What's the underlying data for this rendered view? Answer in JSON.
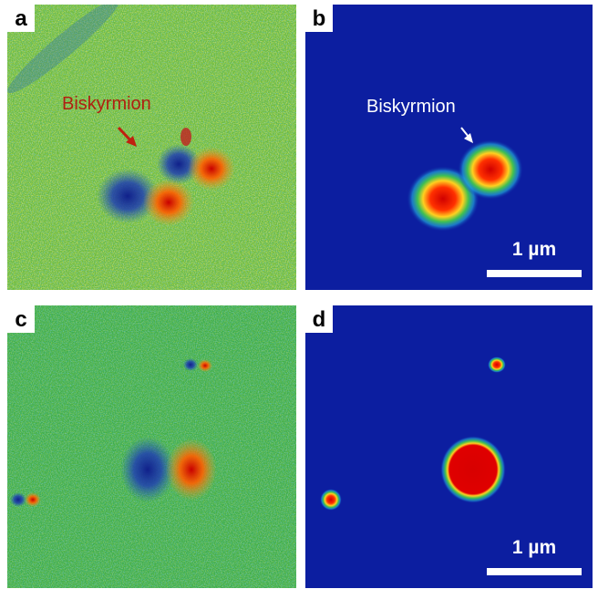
{
  "panels": [
    {
      "label": "a",
      "annotation": "Biskyrmion"
    },
    {
      "label": "b",
      "annotation": "Biskyrmion",
      "scale_bar": "1 µm"
    },
    {
      "label": "c"
    },
    {
      "label": "d",
      "scale_bar": "1 µm"
    }
  ]
}
